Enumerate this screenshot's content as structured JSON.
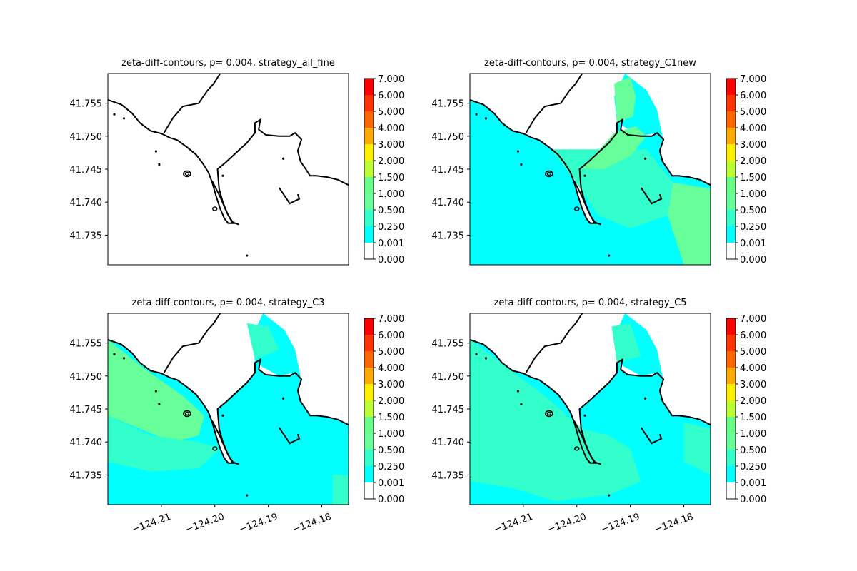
{
  "chart_data": [
    {
      "type": "heatmap",
      "title": "zeta-diff-contours, p= 0.004, strategy_all_fine",
      "yticks": [
        "41.735",
        "41.740",
        "41.745",
        "41.750",
        "41.755"
      ],
      "xticks": [],
      "fill_levels": []
    },
    {
      "type": "heatmap",
      "title": "zeta-diff-contours, p= 0.004, strategy_C1new",
      "yticks": [
        "41.735",
        "41.740",
        "41.745",
        "41.750",
        "41.755"
      ],
      "xticks": [],
      "fill_levels": [
        "0.001-0.250",
        "0.250-0.500",
        "0.500-1.000"
      ]
    },
    {
      "type": "heatmap",
      "title": "zeta-diff-contours, p= 0.004, strategy_C3",
      "yticks": [
        "41.735",
        "41.740",
        "41.745",
        "41.750",
        "41.755"
      ],
      "xticks": [
        "−124.21",
        "−124.20",
        "−124.19",
        "−124.18"
      ],
      "fill_levels": [
        "0.001-0.250",
        "0.250-0.500",
        "0.500-1.000"
      ]
    },
    {
      "type": "heatmap",
      "title": "zeta-diff-contours, p= 0.004, strategy_C5",
      "yticks": [
        "41.735",
        "41.740",
        "41.745",
        "41.750",
        "41.755"
      ],
      "xticks": [
        "−124.21",
        "−124.20",
        "−124.19",
        "−124.18"
      ],
      "fill_levels": [
        "0.001-0.250",
        "0.250-0.500",
        "0.500-1.000"
      ]
    }
  ],
  "colorbar": {
    "labels": [
      "7.000",
      "6.000",
      "5.000",
      "4.000",
      "3.000",
      "2.000",
      "1.500",
      "1.000",
      "0.500",
      "0.250",
      "0.001",
      "0.000"
    ],
    "colors_top_to_bottom": [
      "#ff0000",
      "#ff3300",
      "#ff6600",
      "#ffaa00",
      "#ffee00",
      "#bbff33",
      "#66ff88",
      "#66ff99",
      "#33ffcc",
      "#00ffff",
      "#ffffff"
    ]
  }
}
